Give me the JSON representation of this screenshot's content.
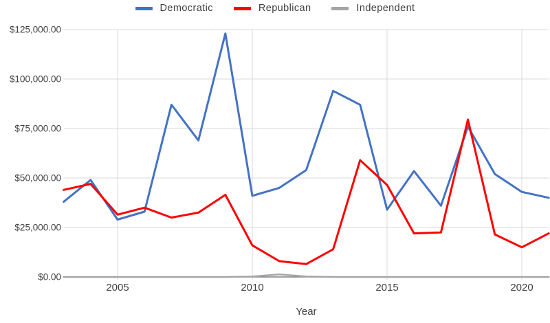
{
  "chart_data": {
    "type": "line",
    "title": "",
    "xlabel": "Year",
    "ylabel": "",
    "xlim": [
      2003,
      2021
    ],
    "ylim": [
      0,
      125000
    ],
    "grid": true,
    "legend_position": "top",
    "x": [
      2003,
      2004,
      2005,
      2006,
      2007,
      2008,
      2009,
      2010,
      2011,
      2012,
      2013,
      2014,
      2015,
      2016,
      2017,
      2018,
      2019,
      2020,
      2021
    ],
    "series": [
      {
        "name": "Democratic",
        "color": "#4472C4",
        "values": [
          38000,
          49000,
          29000,
          33000,
          87000,
          69000,
          123000,
          41000,
          45000,
          54000,
          94000,
          87000,
          34000,
          53500,
          36000,
          76000,
          52000,
          43000,
          40000
        ]
      },
      {
        "name": "Republican",
        "color": "#FF0000",
        "values": [
          44000,
          47000,
          31500,
          35000,
          30000,
          32500,
          41500,
          16000,
          8000,
          6500,
          14000,
          59000,
          46500,
          22000,
          22500,
          79500,
          21500,
          15000,
          22000
        ]
      },
      {
        "name": "Independent",
        "color": "#A5A5A5",
        "values": [
          0,
          0,
          0,
          0,
          0,
          0,
          0,
          200,
          1300,
          200,
          0,
          0,
          0,
          0,
          0,
          0,
          0,
          0,
          0
        ]
      }
    ],
    "y_ticks": [
      {
        "value": 0,
        "label": "$0.00"
      },
      {
        "value": 25000,
        "label": "$25,000.00"
      },
      {
        "value": 50000,
        "label": "$50,000.00"
      },
      {
        "value": 75000,
        "label": "$75,000.00"
      },
      {
        "value": 100000,
        "label": "$100,000.00"
      },
      {
        "value": 125000,
        "label": "$125,000.00"
      }
    ],
    "x_ticks": [
      {
        "value": 2005,
        "label": "2005"
      },
      {
        "value": 2010,
        "label": "2010"
      },
      {
        "value": 2015,
        "label": "2015"
      },
      {
        "value": 2020,
        "label": "2020"
      }
    ],
    "colors": {
      "grid": "#D9D9D9",
      "axis": "#808080",
      "text": "#404040"
    }
  }
}
